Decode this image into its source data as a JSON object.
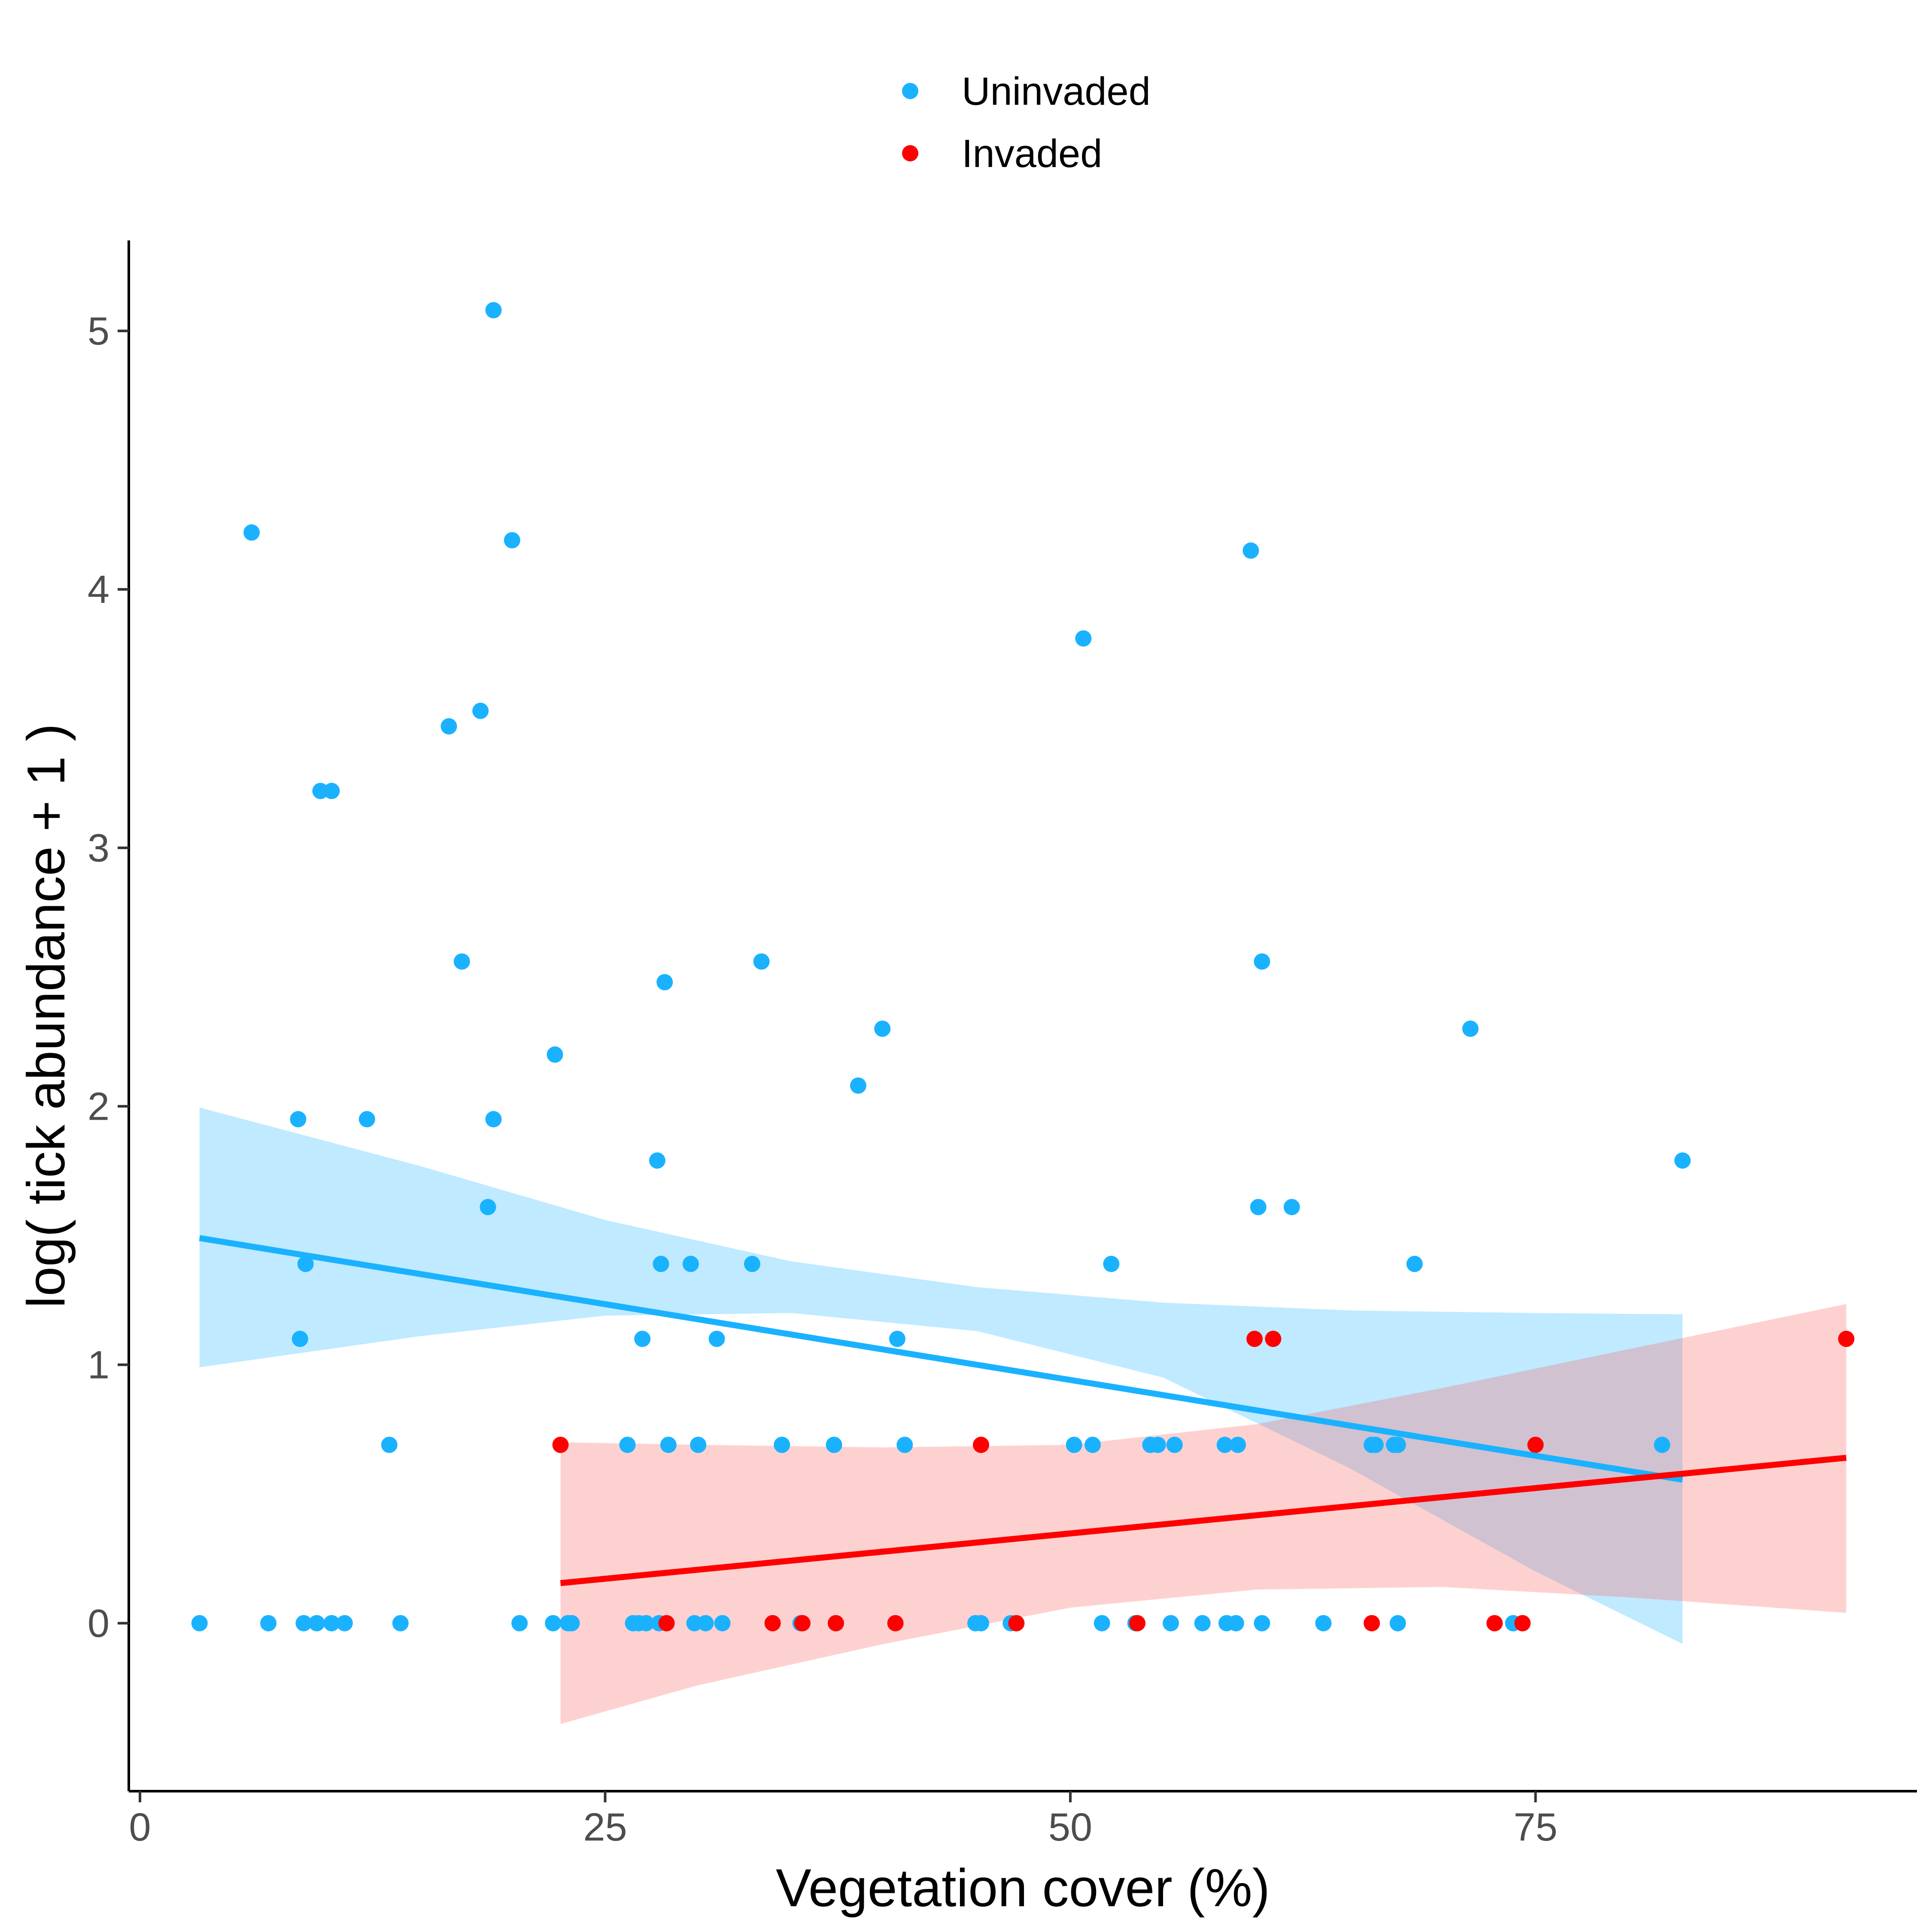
{
  "chart_data": {
    "type": "scatter",
    "xlabel": "Vegetation cover (%)",
    "ylabel": "log( tick abundance + 1 )",
    "xlim": [
      -0.6,
      95.5
    ],
    "ylim": [
      -0.65,
      5.35
    ],
    "x_ticks": [
      0,
      25,
      50,
      75
    ],
    "y_ticks": [
      0,
      1,
      2,
      3,
      4,
      5
    ],
    "grid": false,
    "legend_position": "top",
    "series": [
      {
        "name": "Uninvaded",
        "color": "#1AB2FF",
        "ribbon_color": "#1AB2FF",
        "points": [
          [
            3.2,
            0
          ],
          [
            6.0,
            4.22
          ],
          [
            6.9,
            0
          ],
          [
            8.5,
            1.95
          ],
          [
            8.6,
            1.1
          ],
          [
            8.8,
            0
          ],
          [
            8.9,
            1.39
          ],
          [
            9.5,
            0
          ],
          [
            9.7,
            3.22
          ],
          [
            10.3,
            3.22
          ],
          [
            10.3,
            0
          ],
          [
            11.0,
            0
          ],
          [
            12.2,
            1.95
          ],
          [
            13.4,
            0.69
          ],
          [
            14.0,
            0
          ],
          [
            16.6,
            3.47
          ],
          [
            17.3,
            2.56
          ],
          [
            18.3,
            3.53
          ],
          [
            18.7,
            1.61
          ],
          [
            19.0,
            1.95
          ],
          [
            19.0,
            5.08
          ],
          [
            20.0,
            4.19
          ],
          [
            20.4,
            0
          ],
          [
            22.2,
            0
          ],
          [
            22.3,
            2.2
          ],
          [
            23.0,
            0
          ],
          [
            23.2,
            0
          ],
          [
            26.2,
            0.69
          ],
          [
            26.5,
            0
          ],
          [
            26.8,
            0
          ],
          [
            27.0,
            1.1
          ],
          [
            27.2,
            0
          ],
          [
            27.8,
            1.79
          ],
          [
            27.9,
            0
          ],
          [
            28.0,
            1.39
          ],
          [
            28.2,
            2.48
          ],
          [
            28.4,
            0.69
          ],
          [
            29.6,
            1.39
          ],
          [
            29.8,
            0
          ],
          [
            30.0,
            0.69
          ],
          [
            30.4,
            0
          ],
          [
            31.0,
            1.1
          ],
          [
            31.3,
            0
          ],
          [
            32.9,
            1.39
          ],
          [
            33.4,
            2.56
          ],
          [
            34.5,
            0.69
          ],
          [
            35.5,
            0
          ],
          [
            37.3,
            0.69
          ],
          [
            37.4,
            0
          ],
          [
            38.6,
            2.08
          ],
          [
            39.9,
            2.3
          ],
          [
            40.7,
            1.1
          ],
          [
            41.1,
            0.69
          ],
          [
            44.9,
            0
          ],
          [
            45.2,
            0
          ],
          [
            46.8,
            0
          ],
          [
            50.2,
            0.69
          ],
          [
            50.7,
            3.81
          ],
          [
            51.2,
            0.69
          ],
          [
            51.7,
            0
          ],
          [
            52.2,
            1.39
          ],
          [
            53.5,
            0
          ],
          [
            54.3,
            0.69
          ],
          [
            54.7,
            0.69
          ],
          [
            55.4,
            0
          ],
          [
            55.6,
            0.69
          ],
          [
            57.1,
            0
          ],
          [
            58.3,
            0.69
          ],
          [
            58.4,
            0
          ],
          [
            58.9,
            0
          ],
          [
            59.0,
            0.69
          ],
          [
            59.7,
            4.15
          ],
          [
            60.1,
            1.61
          ],
          [
            60.3,
            2.56
          ],
          [
            60.3,
            0
          ],
          [
            61.9,
            1.61
          ],
          [
            63.6,
            0
          ],
          [
            66.2,
            0.69
          ],
          [
            66.4,
            0.69
          ],
          [
            67.4,
            0.69
          ],
          [
            67.6,
            0.69
          ],
          [
            67.6,
            0
          ],
          [
            68.5,
            1.39
          ],
          [
            71.5,
            2.3
          ],
          [
            73.8,
            0
          ],
          [
            81.8,
            0.69
          ],
          [
            82.9,
            1.79
          ]
        ],
        "fit": {
          "x": [
            3.2,
            82.9
          ],
          "y": [
            1.49,
            0.555
          ]
        },
        "ribbon": {
          "x": [
            3.2,
            15,
            25,
            35,
            45,
            55,
            65,
            75,
            82.9
          ],
          "lower": [
            0.99,
            1.11,
            1.19,
            1.2,
            1.13,
            0.95,
            0.6,
            0.2,
            -0.08
          ],
          "upper": [
            1.995,
            1.77,
            1.56,
            1.4,
            1.3,
            1.24,
            1.21,
            1.2,
            1.195
          ]
        }
      },
      {
        "name": "Invaded",
        "color": "#FF0000",
        "ribbon_color": "#FA5A5A",
        "points": [
          [
            22.6,
            0.69
          ],
          [
            28.3,
            0
          ],
          [
            34.0,
            0
          ],
          [
            35.6,
            0
          ],
          [
            37.4,
            0
          ],
          [
            40.6,
            0
          ],
          [
            45.2,
            0.69
          ],
          [
            47.1,
            0
          ],
          [
            53.6,
            0
          ],
          [
            59.9,
            1.1
          ],
          [
            60.9,
            1.1
          ],
          [
            66.2,
            0
          ],
          [
            72.8,
            0
          ],
          [
            74.3,
            0
          ],
          [
            75.0,
            0.69
          ],
          [
            91.7,
            1.1
          ]
        ],
        "fit": {
          "x": [
            22.6,
            91.7
          ],
          "y": [
            0.155,
            0.64
          ]
        },
        "ribbon": {
          "x": [
            22.6,
            30,
            40,
            50,
            60,
            70,
            80,
            91.7
          ],
          "lower": [
            -0.39,
            -0.24,
            -0.08,
            0.06,
            0.13,
            0.14,
            0.1,
            0.04
          ],
          "upper": [
            0.7,
            0.69,
            0.68,
            0.69,
            0.77,
            0.91,
            1.06,
            1.235
          ]
        }
      }
    ]
  }
}
